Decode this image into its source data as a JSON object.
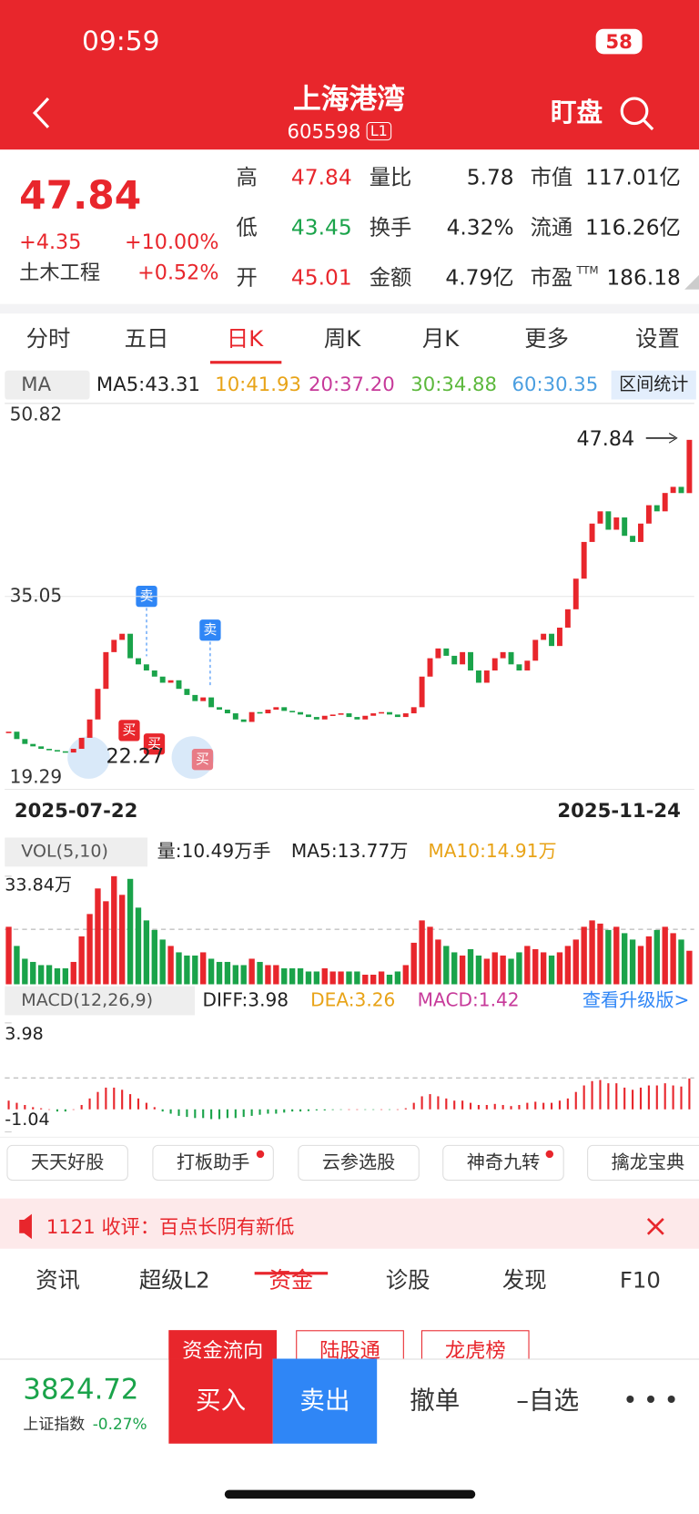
{
  "status": {
    "time": "09:59",
    "battery": "58"
  },
  "header": {
    "title": "上海港湾",
    "code": "605598",
    "level": "L1",
    "watch": "盯盘"
  },
  "quote": {
    "price": "47.84",
    "change": "+4.35",
    "change_pct": "+10.00%",
    "sector": "土木工程",
    "sector_pct": "+0.52%",
    "stats": [
      [
        "高",
        "47.84",
        "量比",
        "5.78",
        "市值",
        "117.01亿"
      ],
      [
        "低",
        "43.45",
        "换手",
        "4.32%",
        "流通",
        "116.26亿"
      ],
      [
        "开",
        "45.01",
        "金额",
        "4.79亿",
        "市盈",
        "186.18"
      ]
    ],
    "pe_sup": "TTM"
  },
  "period_tabs": [
    "分时",
    "五日",
    "日K",
    "周K",
    "月K",
    "更多",
    "设置"
  ],
  "ma_legend": {
    "selector": "MA",
    "items": [
      "MA5:43.31",
      "10:41.93",
      "20:37.20",
      "30:34.88",
      "60:30.35"
    ],
    "stat": "区间统计"
  },
  "chart_data": [
    {
      "type": "candlestick",
      "start_date": "2025-07-22",
      "end_date": "2025-11-24",
      "closes": [
        24.0,
        23.4,
        23.0,
        22.8,
        22.6,
        22.5,
        22.4,
        22.3,
        22.6,
        23.5,
        25.0,
        27.5,
        30.5,
        31.5,
        32.0,
        30.0,
        29.5,
        29.0,
        28.5,
        28.0,
        28.2,
        27.5,
        27.0,
        26.5,
        26.8,
        26.0,
        25.8,
        25.5,
        25.0,
        24.8,
        25.6,
        25.5,
        25.8,
        26.0,
        25.7,
        25.6,
        25.4,
        25.2,
        25.0,
        25.3,
        25.4,
        25.5,
        25.2,
        25.0,
        25.3,
        25.5,
        25.6,
        25.4,
        25.2,
        25.5,
        26.0,
        28.5,
        30.0,
        30.8,
        30.2,
        29.5,
        30.5,
        29.0,
        28.0,
        29.0,
        30.0,
        30.5,
        29.5,
        29.0,
        29.8,
        31.5,
        32.0,
        31.0,
        32.5,
        34.0,
        36.5,
        39.5,
        41.0,
        42.0,
        40.5,
        41.5,
        40.0,
        39.5,
        41.0,
        42.5,
        42.0,
        43.5,
        44.0,
        43.49,
        47.84
      ],
      "ylim": [
        19.29,
        50.82
      ],
      "yticks": [
        50.82,
        35.05,
        19.29
      ],
      "last_label": "47.84",
      "low_label": "22.27",
      "markers": [
        "卖",
        "卖",
        "买",
        "买",
        "买"
      ]
    },
    {
      "type": "bar",
      "legend": "VOL(5,10)",
      "items": [
        "量:10.49万手",
        "MA5:13.77万",
        "MA10:14.91万"
      ],
      "values": [
        18,
        12,
        8,
        7,
        6,
        6,
        5,
        5,
        7,
        15,
        22,
        30,
        26,
        33.84,
        28,
        33.0,
        24,
        20,
        17,
        14,
        12,
        10,
        9,
        9,
        10,
        8,
        7,
        7,
        6,
        6,
        8,
        7,
        6,
        6,
        5,
        5,
        5,
        4,
        4,
        5,
        4,
        4,
        4,
        4,
        3,
        3,
        4,
        3,
        4,
        6,
        13,
        20,
        18,
        14,
        12,
        10,
        9,
        11,
        9,
        8,
        10,
        9,
        8,
        10,
        12,
        11,
        10,
        9,
        10,
        12,
        14,
        18,
        20,
        19,
        17,
        18,
        16,
        14,
        12,
        15,
        17,
        18,
        16,
        14,
        10.49
      ],
      "ylim": [
        0,
        33.84
      ],
      "yticks": [
        {
          "value": 33.84,
          "label": "33.84万"
        }
      ]
    },
    {
      "type": "bar",
      "legend": "MACD(12,26,9)",
      "items": [
        "DIFF:3.98",
        "DEA:3.26",
        "MACD:1.42"
      ],
      "upgrade": "查看升级版>",
      "values": [
        0.4,
        0.3,
        0.2,
        0.1,
        0.05,
        0.0,
        -0.1,
        -0.1,
        0.0,
        0.2,
        0.5,
        0.8,
        1.0,
        1.0,
        0.9,
        0.7,
        0.5,
        0.3,
        0.1,
        -0.1,
        -0.2,
        -0.3,
        -0.35,
        -0.4,
        -0.4,
        -0.45,
        -0.45,
        -0.4,
        -0.4,
        -0.35,
        -0.3,
        -0.25,
        -0.2,
        -0.2,
        -0.15,
        -0.1,
        -0.1,
        -0.08,
        -0.05,
        -0.05,
        -0.03,
        -0.02,
        0.0,
        0.0,
        -0.02,
        -0.02,
        0.0,
        -0.01,
        0.0,
        0.05,
        0.3,
        0.6,
        0.7,
        0.6,
        0.5,
        0.4,
        0.4,
        0.3,
        0.2,
        0.2,
        0.25,
        0.2,
        0.15,
        0.2,
        0.3,
        0.35,
        0.3,
        0.3,
        0.4,
        0.5,
        0.8,
        1.1,
        1.3,
        1.35,
        1.2,
        1.2,
        1.0,
        0.9,
        1.0,
        1.1,
        1.1,
        1.2,
        1.1,
        1.05,
        1.42
      ],
      "ylim": [
        -1.04,
        3.98
      ],
      "yticks": [
        3.98,
        -1.04
      ]
    }
  ],
  "tools": [
    "天天好股",
    "打板助手",
    "云参选股",
    "神奇九转",
    "擒龙宝典"
  ],
  "notice": "1121 收评：百点长阴有新低",
  "info_tabs": [
    "资讯",
    "超级L2",
    "资金",
    "诊股",
    "发现",
    "F10"
  ],
  "fund_tabs": [
    "资金流向",
    "陆股通",
    "龙虎榜"
  ],
  "bottom": {
    "index_value": "3824.72",
    "index_name": "上证指数",
    "index_pct": "-0.27%",
    "buy": "买入",
    "sell": "卖出",
    "cancel": "撤单",
    "watchlist": "–自选"
  }
}
